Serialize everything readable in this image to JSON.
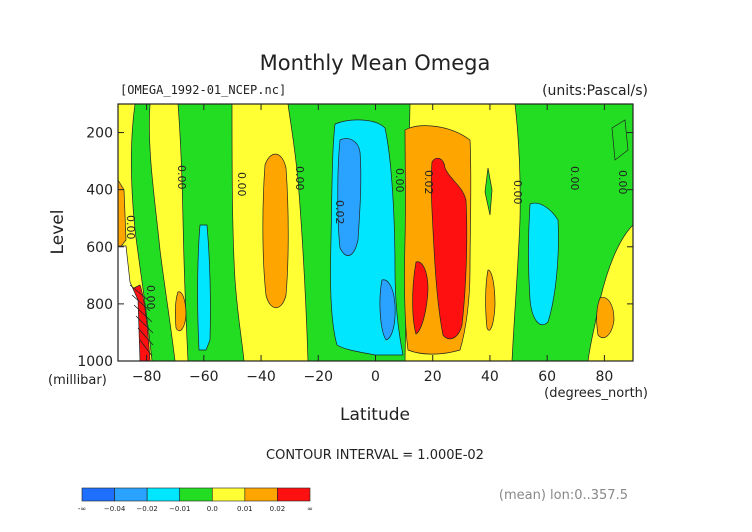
{
  "chart_data": {
    "type": "contour",
    "title": "Monthly Mean Omega",
    "file_label": "[OMEGA_1992-01_NCEP.nc]",
    "units_label": "(units:Pascal/s)",
    "xlabel": "Latitude",
    "xunit": "(degrees_north)",
    "ylabel": "Level",
    "yunit": "(millibar)",
    "contour_interval": "CONTOUR INTERVAL = 1.000E-02",
    "mean_note": "(mean) lon:0..357.5",
    "xlim": [
      -90,
      90
    ],
    "ylim": [
      1000,
      100
    ],
    "xticks": [
      -80,
      -60,
      -40,
      -20,
      0,
      20,
      40,
      60,
      80
    ],
    "yticks": [
      200,
      400,
      600,
      800,
      1000
    ],
    "xtick_labels": [
      "−80",
      "−60",
      "−40",
      "−20",
      "0",
      "20",
      "40",
      "60",
      "80"
    ],
    "ytick_labels": [
      "200",
      "400",
      "600",
      "800",
      "1000"
    ],
    "contour_labels": [
      "0.00",
      "0.00",
      "0.00",
      "0.00",
      "0.00",
      "0.00",
      "0.00",
      "0.00",
      "0.00",
      "0.02",
      "0.02"
    ],
    "colorbar": {
      "labels": [
        "-∞",
        "−0.04",
        "−0.02",
        "−0.01",
        "0.0",
        "0.01",
        "0.02",
        "∞"
      ],
      "colors": [
        "#1f6fff",
        "#2aa2ff",
        "#00e6ff",
        "#22dd22",
        "#ffff33",
        "#ffa500",
        "#ff1010"
      ]
    },
    "colors": {
      "neg_mid": "#2aa2ff",
      "neg_weak": "#00e6ff",
      "zero_neg": "#22dd22",
      "zero_pos": "#ffff33",
      "pos_weak": "#ffa500",
      "pos_mid": "#ff1010"
    }
  }
}
